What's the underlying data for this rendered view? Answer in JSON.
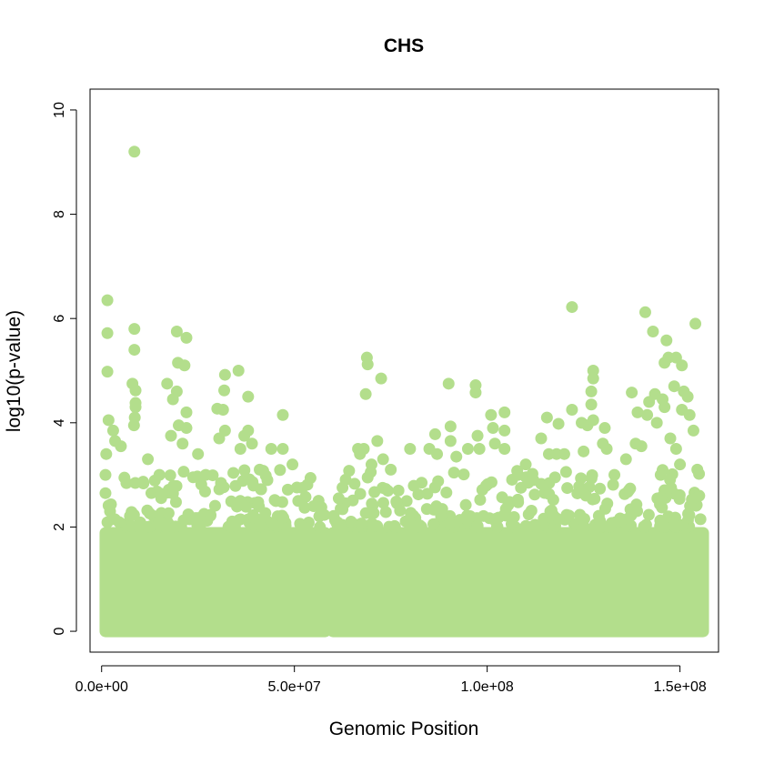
{
  "chart_data": {
    "type": "scatter",
    "title": "CHS",
    "xlabel": "Genomic Position",
    "ylabel": "log10(p-value)",
    "xlim": [
      -3000000,
      160000000
    ],
    "ylim": [
      -0.4,
      10.4
    ],
    "x_ticks": [
      {
        "value": 0,
        "label": "0.0e+00"
      },
      {
        "value": 50000000,
        "label": "5.0e+07"
      },
      {
        "value": 100000000,
        "label": "1.0e+08"
      },
      {
        "value": 150000000,
        "label": "1.5e+08"
      }
    ],
    "y_ticks": [
      {
        "value": 0,
        "label": "0"
      },
      {
        "value": 2,
        "label": "2"
      },
      {
        "value": 4,
        "label": "4"
      },
      {
        "value": 6,
        "label": "6"
      },
      {
        "value": 8,
        "label": "8"
      },
      {
        "value": 10,
        "label": "10"
      }
    ],
    "point_color": "#B3DE8C",
    "grid": false,
    "legend": "none",
    "dense_bands": [
      {
        "x_start": 1000000,
        "x_end": 58000000,
        "y_max": 2.0
      },
      {
        "x_start": 60000000,
        "x_end": 156000000,
        "y_max": 2.0
      }
    ],
    "points": [
      {
        "x": 8500000,
        "y": 9.2
      },
      {
        "x": 1500000,
        "y": 6.35
      },
      {
        "x": 1500000,
        "y": 5.72
      },
      {
        "x": 1500000,
        "y": 4.98
      },
      {
        "x": 8500000,
        "y": 5.8
      },
      {
        "x": 8500000,
        "y": 5.4
      },
      {
        "x": 8000000,
        "y": 4.75
      },
      {
        "x": 8800000,
        "y": 4.62
      },
      {
        "x": 8800000,
        "y": 4.38
      },
      {
        "x": 8800000,
        "y": 4.3
      },
      {
        "x": 8600000,
        "y": 4.1
      },
      {
        "x": 8400000,
        "y": 3.95
      },
      {
        "x": 1800000,
        "y": 4.05
      },
      {
        "x": 3000000,
        "y": 3.85
      },
      {
        "x": 3500000,
        "y": 3.65
      },
      {
        "x": 5000000,
        "y": 3.55
      },
      {
        "x": 1200000,
        "y": 3.4
      },
      {
        "x": 1000000,
        "y": 3.0
      },
      {
        "x": 1000000,
        "y": 2.65
      },
      {
        "x": 19500000,
        "y": 5.75
      },
      {
        "x": 22000000,
        "y": 5.63
      },
      {
        "x": 19800000,
        "y": 5.15
      },
      {
        "x": 21500000,
        "y": 5.1
      },
      {
        "x": 17000000,
        "y": 4.75
      },
      {
        "x": 19500000,
        "y": 4.6
      },
      {
        "x": 18500000,
        "y": 4.45
      },
      {
        "x": 22000000,
        "y": 4.2
      },
      {
        "x": 20000000,
        "y": 3.95
      },
      {
        "x": 22000000,
        "y": 3.9
      },
      {
        "x": 18000000,
        "y": 3.75
      },
      {
        "x": 21000000,
        "y": 3.6
      },
      {
        "x": 32000000,
        "y": 4.92
      },
      {
        "x": 35500000,
        "y": 5.0
      },
      {
        "x": 31800000,
        "y": 4.62
      },
      {
        "x": 30000000,
        "y": 4.27
      },
      {
        "x": 31500000,
        "y": 4.25
      },
      {
        "x": 32000000,
        "y": 3.85
      },
      {
        "x": 30500000,
        "y": 3.7
      },
      {
        "x": 38000000,
        "y": 4.5
      },
      {
        "x": 38000000,
        "y": 3.85
      },
      {
        "x": 37000000,
        "y": 3.75
      },
      {
        "x": 39000000,
        "y": 3.6
      },
      {
        "x": 36000000,
        "y": 3.5
      },
      {
        "x": 47000000,
        "y": 4.15
      },
      {
        "x": 44000000,
        "y": 3.5
      },
      {
        "x": 47000000,
        "y": 3.5
      },
      {
        "x": 49500000,
        "y": 3.2
      },
      {
        "x": 52000000,
        "y": 2.75
      },
      {
        "x": 51000000,
        "y": 2.5
      },
      {
        "x": 55000000,
        "y": 2.4
      },
      {
        "x": 57000000,
        "y": 2.38
      },
      {
        "x": 61500000,
        "y": 2.55
      },
      {
        "x": 62000000,
        "y": 2.35
      },
      {
        "x": 68800000,
        "y": 5.25
      },
      {
        "x": 69000000,
        "y": 5.12
      },
      {
        "x": 72500000,
        "y": 4.85
      },
      {
        "x": 68500000,
        "y": 4.55
      },
      {
        "x": 71500000,
        "y": 3.65
      },
      {
        "x": 68000000,
        "y": 3.5
      },
      {
        "x": 66500000,
        "y": 3.5
      },
      {
        "x": 67000000,
        "y": 3.4
      },
      {
        "x": 70000000,
        "y": 3.2
      },
      {
        "x": 73000000,
        "y": 3.3
      },
      {
        "x": 75000000,
        "y": 3.1
      },
      {
        "x": 69000000,
        "y": 2.95
      },
      {
        "x": 80000000,
        "y": 3.5
      },
      {
        "x": 85000000,
        "y": 3.5
      },
      {
        "x": 86500000,
        "y": 3.78
      },
      {
        "x": 87000000,
        "y": 3.4
      },
      {
        "x": 90000000,
        "y": 4.75
      },
      {
        "x": 90500000,
        "y": 3.93
      },
      {
        "x": 90500000,
        "y": 3.65
      },
      {
        "x": 92000000,
        "y": 3.35
      },
      {
        "x": 95000000,
        "y": 3.5
      },
      {
        "x": 97000000,
        "y": 4.72
      },
      {
        "x": 97000000,
        "y": 4.58
      },
      {
        "x": 97500000,
        "y": 3.75
      },
      {
        "x": 98000000,
        "y": 3.5
      },
      {
        "x": 101000000,
        "y": 4.15
      },
      {
        "x": 101500000,
        "y": 3.9
      },
      {
        "x": 102000000,
        "y": 3.6
      },
      {
        "x": 104500000,
        "y": 4.2
      },
      {
        "x": 104500000,
        "y": 3.85
      },
      {
        "x": 104500000,
        "y": 3.5
      },
      {
        "x": 108000000,
        "y": 3.0
      },
      {
        "x": 110000000,
        "y": 3.2
      },
      {
        "x": 115500000,
        "y": 4.1
      },
      {
        "x": 118500000,
        "y": 3.98
      },
      {
        "x": 114000000,
        "y": 3.7
      },
      {
        "x": 116000000,
        "y": 3.4
      },
      {
        "x": 118000000,
        "y": 3.4
      },
      {
        "x": 120000000,
        "y": 3.4
      },
      {
        "x": 122000000,
        "y": 6.22
      },
      {
        "x": 122000000,
        "y": 4.25
      },
      {
        "x": 124500000,
        "y": 4.0
      },
      {
        "x": 126000000,
        "y": 3.95
      },
      {
        "x": 127500000,
        "y": 5.0
      },
      {
        "x": 127500000,
        "y": 4.85
      },
      {
        "x": 127000000,
        "y": 4.6
      },
      {
        "x": 127000000,
        "y": 4.35
      },
      {
        "x": 127500000,
        "y": 4.05
      },
      {
        "x": 130500000,
        "y": 3.9
      },
      {
        "x": 130000000,
        "y": 3.6
      },
      {
        "x": 131000000,
        "y": 3.5
      },
      {
        "x": 125000000,
        "y": 3.45
      },
      {
        "x": 137500000,
        "y": 4.58
      },
      {
        "x": 136000000,
        "y": 3.3
      },
      {
        "x": 139000000,
        "y": 4.2
      },
      {
        "x": 138500000,
        "y": 3.6
      },
      {
        "x": 141000000,
        "y": 6.12
      },
      {
        "x": 143000000,
        "y": 5.75
      },
      {
        "x": 146500000,
        "y": 5.58
      },
      {
        "x": 147000000,
        "y": 5.25
      },
      {
        "x": 149000000,
        "y": 5.25
      },
      {
        "x": 150500000,
        "y": 5.1
      },
      {
        "x": 146000000,
        "y": 5.15
      },
      {
        "x": 148500000,
        "y": 4.7
      },
      {
        "x": 142000000,
        "y": 4.4
      },
      {
        "x": 143500000,
        "y": 4.55
      },
      {
        "x": 145500000,
        "y": 4.45
      },
      {
        "x": 146000000,
        "y": 4.3
      },
      {
        "x": 141500000,
        "y": 4.15
      },
      {
        "x": 144000000,
        "y": 4.0
      },
      {
        "x": 151000000,
        "y": 4.6
      },
      {
        "x": 152000000,
        "y": 4.5
      },
      {
        "x": 150500000,
        "y": 4.25
      },
      {
        "x": 152500000,
        "y": 4.15
      },
      {
        "x": 153500000,
        "y": 3.85
      },
      {
        "x": 154000000,
        "y": 5.9
      },
      {
        "x": 154500000,
        "y": 3.1
      },
      {
        "x": 155000000,
        "y": 2.6
      },
      {
        "x": 147500000,
        "y": 3.7
      },
      {
        "x": 149000000,
        "y": 3.5
      },
      {
        "x": 150000000,
        "y": 3.2
      },
      {
        "x": 140000000,
        "y": 3.55
      },
      {
        "x": 145000000,
        "y": 3.0
      },
      {
        "x": 133000000,
        "y": 3.0
      },
      {
        "x": 112000000,
        "y": 2.9
      },
      {
        "x": 83000000,
        "y": 2.85
      },
      {
        "x": 77000000,
        "y": 2.7
      },
      {
        "x": 12000000,
        "y": 3.3
      },
      {
        "x": 15000000,
        "y": 3.0
      },
      {
        "x": 25000000,
        "y": 3.4
      },
      {
        "x": 27000000,
        "y": 3.0
      },
      {
        "x": 41000000,
        "y": 3.1
      },
      {
        "x": 43000000,
        "y": 2.9
      }
    ]
  }
}
